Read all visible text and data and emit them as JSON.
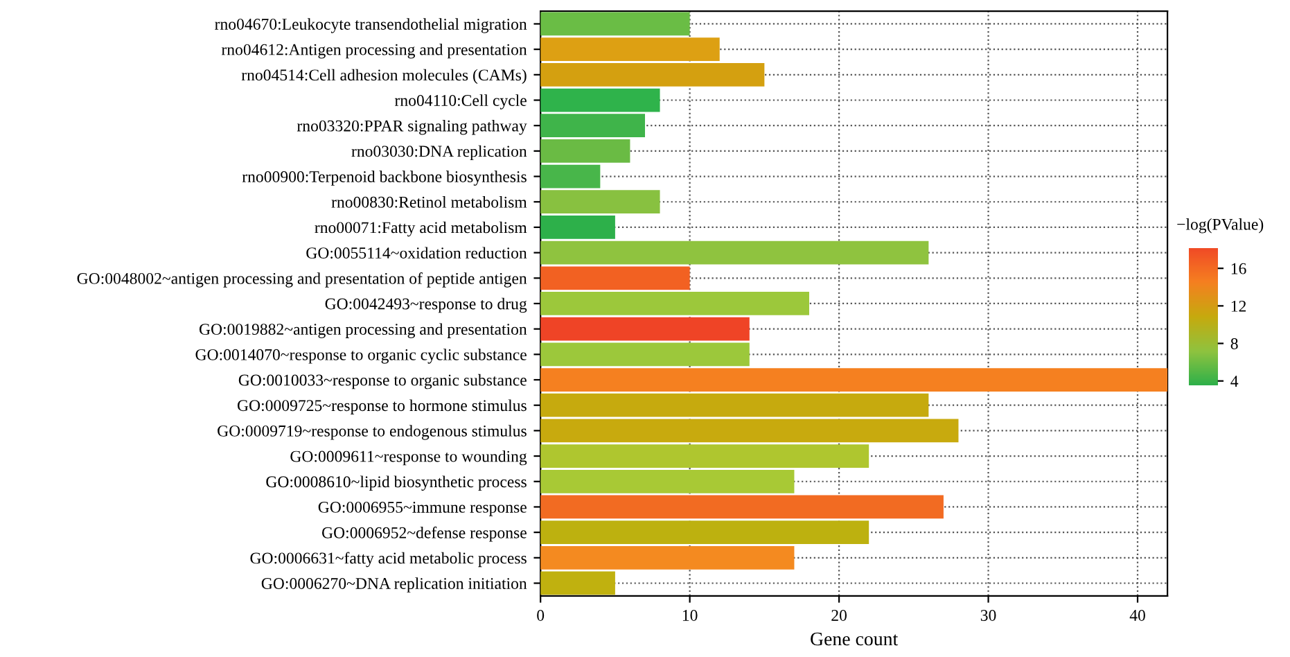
{
  "chart_data": {
    "type": "bar",
    "orientation": "horizontal",
    "xlabel": "Gene count",
    "clabel": "−log(PValue)",
    "categories": [
      "rno04670:Leukocyte transendothelial migration",
      "rno04612:Antigen processing and presentation",
      "rno04514:Cell adhesion molecules (CAMs)",
      "rno04110:Cell cycle",
      "rno03320:PPAR signaling pathway",
      "rno03030:DNA replication",
      "rno00900:Terpenoid backbone biosynthesis",
      "rno00830:Retinol metabolism",
      "rno00071:Fatty acid metabolism",
      "GO:0055114~oxidation reduction",
      "GO:0048002~antigen processing and presentation of peptide antigen",
      "GO:0042493~response to drug",
      "GO:0019882~antigen processing and presentation",
      "GO:0014070~response to organic cyclic substance",
      "GO:0010033~response to organic substance",
      "GO:0009725~response to hormone stimulus",
      "GO:0009719~response to endogenous stimulus",
      "GO:0009611~response to wounding",
      "GO:0008610~lipid biosynthetic process",
      "GO:0006955~immune response",
      "GO:0006952~defense response",
      "GO:0006631~fatty acid metabolic process",
      "GO:0006270~DNA replication initiation"
    ],
    "values": [
      10,
      12,
      15,
      8,
      7,
      6,
      4,
      8,
      5,
      26,
      10,
      18,
      14,
      14,
      42,
      26,
      28,
      22,
      17,
      27,
      22,
      17,
      5
    ],
    "colors": [
      "#6abd45",
      "#dda013",
      "#d4a010",
      "#2fb34b",
      "#3fb44a",
      "#6abb44",
      "#48b64a",
      "#88c140",
      "#2db04a",
      "#8fc33f",
      "#f26122",
      "#9cc83b",
      "#ef4426",
      "#9cc83b",
      "#f58020",
      "#c6aa0e",
      "#c8aa0e",
      "#afc62f",
      "#a8c935",
      "#f26b22",
      "#bdb10f",
      "#f48a20",
      "#c0b10f"
    ],
    "xlim": [
      0,
      42
    ],
    "xticks": [
      0,
      10,
      20,
      30,
      40
    ],
    "clim": [
      3.5,
      18.2
    ],
    "cticks": [
      4,
      8,
      12,
      16
    ],
    "grid": true,
    "line_style": "dotted"
  }
}
